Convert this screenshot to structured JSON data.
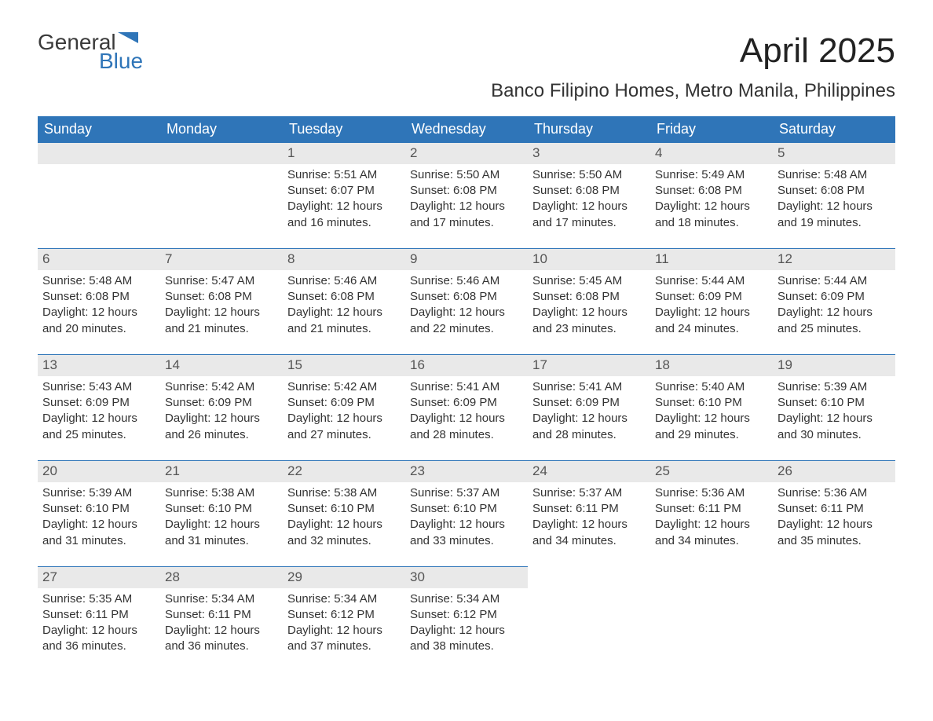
{
  "logo": {
    "text_top": "General",
    "text_bottom": "Blue",
    "accent_color": "#2f75b8"
  },
  "title": "April 2025",
  "location": "Banco Filipino Homes, Metro Manila, Philippines",
  "colors": {
    "header_bg": "#2f75b8",
    "header_text": "#ffffff",
    "daynum_bg": "#e9e9e9",
    "rule": "#2f75b8",
    "body_text": "#333333"
  },
  "calendar": {
    "type": "table",
    "columns": [
      "Sunday",
      "Monday",
      "Tuesday",
      "Wednesday",
      "Thursday",
      "Friday",
      "Saturday"
    ],
    "weeks": [
      [
        null,
        null,
        {
          "n": "1",
          "sunrise": "5:51 AM",
          "sunset": "6:07 PM",
          "daylight": "12 hours and 16 minutes."
        },
        {
          "n": "2",
          "sunrise": "5:50 AM",
          "sunset": "6:08 PM",
          "daylight": "12 hours and 17 minutes."
        },
        {
          "n": "3",
          "sunrise": "5:50 AM",
          "sunset": "6:08 PM",
          "daylight": "12 hours and 17 minutes."
        },
        {
          "n": "4",
          "sunrise": "5:49 AM",
          "sunset": "6:08 PM",
          "daylight": "12 hours and 18 minutes."
        },
        {
          "n": "5",
          "sunrise": "5:48 AM",
          "sunset": "6:08 PM",
          "daylight": "12 hours and 19 minutes."
        }
      ],
      [
        {
          "n": "6",
          "sunrise": "5:48 AM",
          "sunset": "6:08 PM",
          "daylight": "12 hours and 20 minutes."
        },
        {
          "n": "7",
          "sunrise": "5:47 AM",
          "sunset": "6:08 PM",
          "daylight": "12 hours and 21 minutes."
        },
        {
          "n": "8",
          "sunrise": "5:46 AM",
          "sunset": "6:08 PM",
          "daylight": "12 hours and 21 minutes."
        },
        {
          "n": "9",
          "sunrise": "5:46 AM",
          "sunset": "6:08 PM",
          "daylight": "12 hours and 22 minutes."
        },
        {
          "n": "10",
          "sunrise": "5:45 AM",
          "sunset": "6:08 PM",
          "daylight": "12 hours and 23 minutes."
        },
        {
          "n": "11",
          "sunrise": "5:44 AM",
          "sunset": "6:09 PM",
          "daylight": "12 hours and 24 minutes."
        },
        {
          "n": "12",
          "sunrise": "5:44 AM",
          "sunset": "6:09 PM",
          "daylight": "12 hours and 25 minutes."
        }
      ],
      [
        {
          "n": "13",
          "sunrise": "5:43 AM",
          "sunset": "6:09 PM",
          "daylight": "12 hours and 25 minutes."
        },
        {
          "n": "14",
          "sunrise": "5:42 AM",
          "sunset": "6:09 PM",
          "daylight": "12 hours and 26 minutes."
        },
        {
          "n": "15",
          "sunrise": "5:42 AM",
          "sunset": "6:09 PM",
          "daylight": "12 hours and 27 minutes."
        },
        {
          "n": "16",
          "sunrise": "5:41 AM",
          "sunset": "6:09 PM",
          "daylight": "12 hours and 28 minutes."
        },
        {
          "n": "17",
          "sunrise": "5:41 AM",
          "sunset": "6:09 PM",
          "daylight": "12 hours and 28 minutes."
        },
        {
          "n": "18",
          "sunrise": "5:40 AM",
          "sunset": "6:10 PM",
          "daylight": "12 hours and 29 minutes."
        },
        {
          "n": "19",
          "sunrise": "5:39 AM",
          "sunset": "6:10 PM",
          "daylight": "12 hours and 30 minutes."
        }
      ],
      [
        {
          "n": "20",
          "sunrise": "5:39 AM",
          "sunset": "6:10 PM",
          "daylight": "12 hours and 31 minutes."
        },
        {
          "n": "21",
          "sunrise": "5:38 AM",
          "sunset": "6:10 PM",
          "daylight": "12 hours and 31 minutes."
        },
        {
          "n": "22",
          "sunrise": "5:38 AM",
          "sunset": "6:10 PM",
          "daylight": "12 hours and 32 minutes."
        },
        {
          "n": "23",
          "sunrise": "5:37 AM",
          "sunset": "6:10 PM",
          "daylight": "12 hours and 33 minutes."
        },
        {
          "n": "24",
          "sunrise": "5:37 AM",
          "sunset": "6:11 PM",
          "daylight": "12 hours and 34 minutes."
        },
        {
          "n": "25",
          "sunrise": "5:36 AM",
          "sunset": "6:11 PM",
          "daylight": "12 hours and 34 minutes."
        },
        {
          "n": "26",
          "sunrise": "5:36 AM",
          "sunset": "6:11 PM",
          "daylight": "12 hours and 35 minutes."
        }
      ],
      [
        {
          "n": "27",
          "sunrise": "5:35 AM",
          "sunset": "6:11 PM",
          "daylight": "12 hours and 36 minutes."
        },
        {
          "n": "28",
          "sunrise": "5:34 AM",
          "sunset": "6:11 PM",
          "daylight": "12 hours and 36 minutes."
        },
        {
          "n": "29",
          "sunrise": "5:34 AM",
          "sunset": "6:12 PM",
          "daylight": "12 hours and 37 minutes."
        },
        {
          "n": "30",
          "sunrise": "5:34 AM",
          "sunset": "6:12 PM",
          "daylight": "12 hours and 38 minutes."
        },
        null,
        null,
        null
      ]
    ],
    "labels": {
      "sunrise": "Sunrise:",
      "sunset": "Sunset:",
      "daylight": "Daylight:"
    }
  }
}
